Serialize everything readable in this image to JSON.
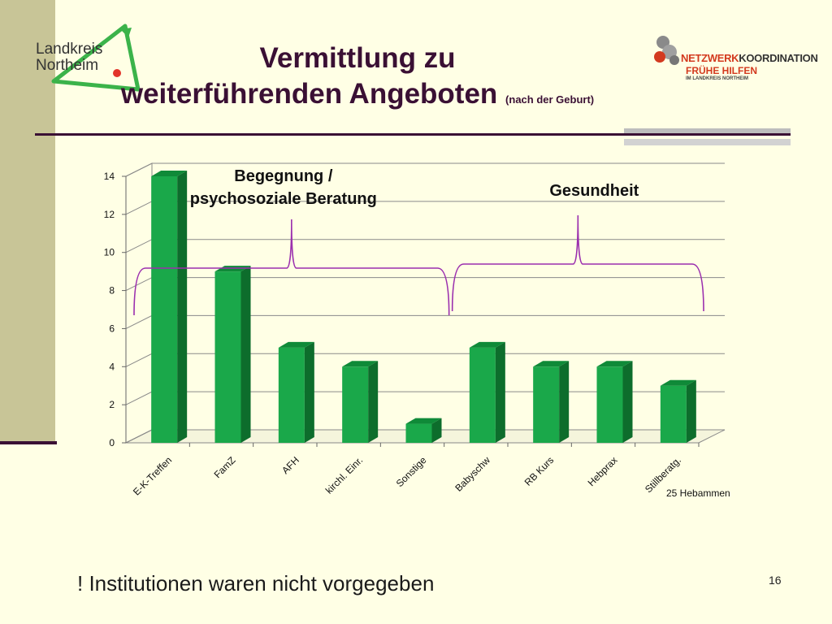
{
  "logo_left": {
    "line1": "Landkreis",
    "line2": "Northeim"
  },
  "logo_right": {
    "line1_a": "NETZWERK",
    "line1_b": "KOORDINATION",
    "line2": "FRÜHE HILFEN",
    "line3": "IM LANDKREIS NORTHEIM"
  },
  "title": {
    "line1": "Vermittlung zu",
    "line2": "weiterführenden Angeboten",
    "subtitle": "(nach der Geburt)"
  },
  "chart_data": {
    "type": "bar",
    "categories": [
      "E-K-Treffen",
      "FamZ",
      "AFH",
      "kirchl. Einr.",
      "Sonstige",
      "Babyschw",
      "RB Kurs",
      "Hebprax",
      "Stillberatg."
    ],
    "values": [
      14,
      9,
      5,
      4,
      1,
      5,
      4,
      4,
      3
    ],
    "ylim": [
      0,
      14
    ],
    "yticks": [
      0,
      2,
      4,
      6,
      8,
      10,
      12,
      14
    ],
    "grid": true,
    "bar_color": "#1aa84a",
    "group_labels": [
      {
        "text_line1": "Begegnung  /",
        "text_line2": "psychosoziale  Beratung",
        "from": 0,
        "to": 4
      },
      {
        "text_line1": "Gesundheit",
        "text_line2": "",
        "from": 5,
        "to": 8
      }
    ],
    "annotation": "25 Hebammen",
    "bracket_color": "#9b2fae"
  },
  "note": "! Institutionen waren nicht vorgegeben",
  "page_number": "16"
}
